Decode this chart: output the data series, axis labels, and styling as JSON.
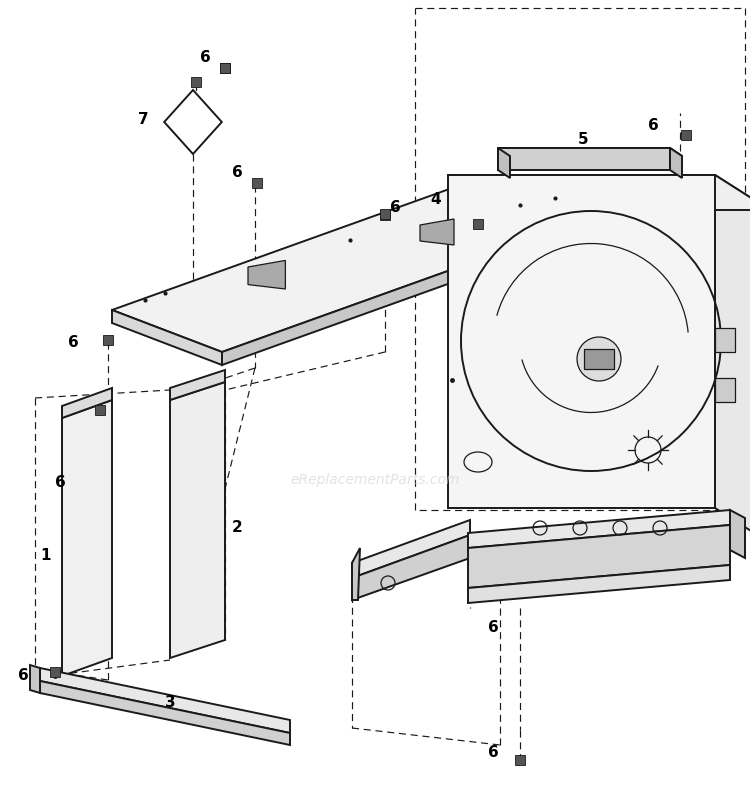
{
  "bg_color": "#ffffff",
  "line_color": "#1a1a1a",
  "dashed_color": "#1a1a1a",
  "watermark": "eReplacementParts.com",
  "watermark_color": "#cccccc",
  "fig_w": 7.5,
  "fig_h": 7.99,
  "dpi": 100,
  "xlim": [
    0,
    750
  ],
  "ylim": [
    0,
    799
  ],
  "lw_main": 1.4,
  "lw_thin": 0.9,
  "lw_dash": 0.85,
  "dash_pattern": [
    6,
    4
  ],
  "label_fontsize": 11,
  "label_fontweight": "bold"
}
